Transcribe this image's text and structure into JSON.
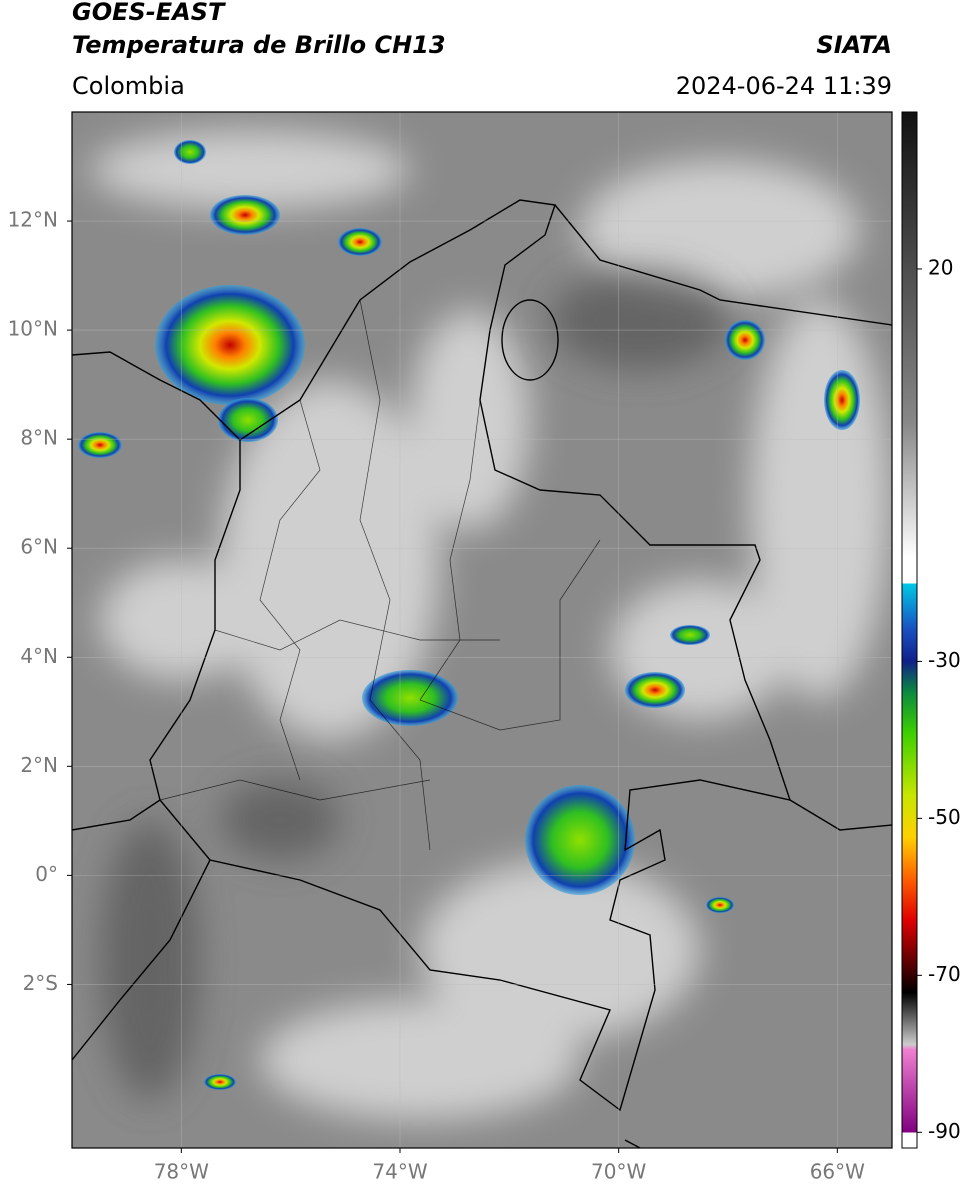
{
  "chart_data": {
    "type": "map",
    "title": "GOES-EAST",
    "subtitle": "Temperatura de Brillo CH13",
    "source": "SIATA",
    "region": "Colombia",
    "datetime": "2024-06-24 11:39",
    "xlim": [
      -80,
      -65
    ],
    "ylim": [
      -5,
      14
    ],
    "xticks": [
      {
        "value": -78,
        "label": "78°W"
      },
      {
        "value": -74,
        "label": "74°W"
      },
      {
        "value": -70,
        "label": "70°W"
      },
      {
        "value": -66,
        "label": "66°W"
      }
    ],
    "yticks": [
      {
        "value": 12,
        "label": "12°N"
      },
      {
        "value": 10,
        "label": "10°N"
      },
      {
        "value": 8,
        "label": "8°N"
      },
      {
        "value": 6,
        "label": "6°N"
      },
      {
        "value": 4,
        "label": "4°N"
      },
      {
        "value": 2,
        "label": "2°N"
      },
      {
        "value": 0,
        "label": "0°"
      },
      {
        "value": -2,
        "label": "2°S"
      }
    ],
    "clim": [
      -92,
      40
    ],
    "cticks": [
      20,
      -30,
      -50,
      -70,
      -90
    ],
    "grid": true
  }
}
